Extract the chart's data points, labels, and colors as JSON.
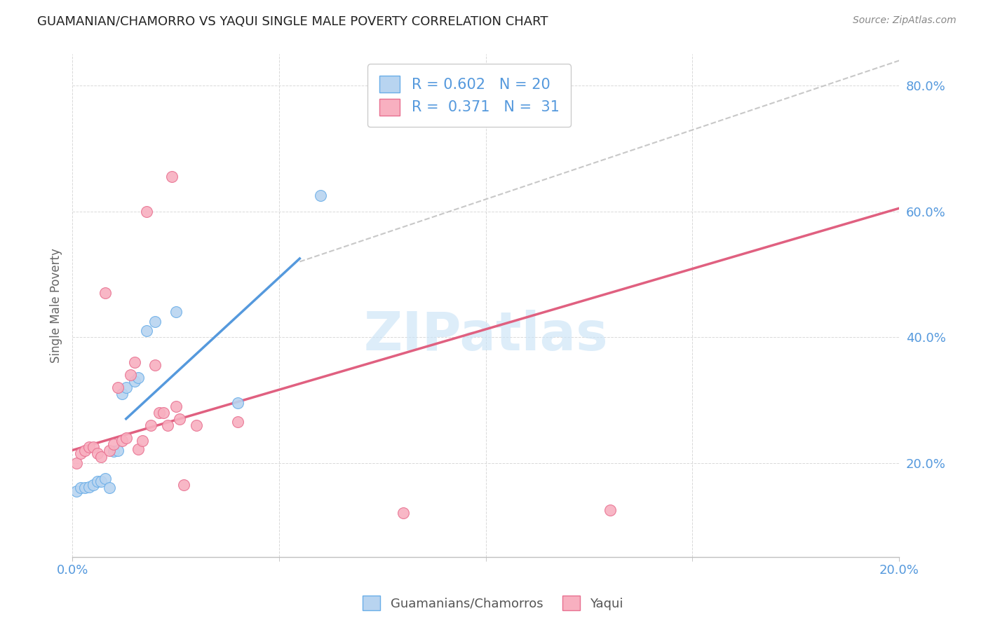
{
  "title": "GUAMANIAN/CHAMORRO VS YAQUI SINGLE MALE POVERTY CORRELATION CHART",
  "source": "Source: ZipAtlas.com",
  "ylabel_label": "Single Male Poverty",
  "xlim": [
    0.0,
    0.2
  ],
  "ylim": [
    0.05,
    0.85
  ],
  "xtick_labels": [
    "0.0%",
    "20.0%"
  ],
  "xtick_vals": [
    0.0,
    0.2
  ],
  "xtick_minor_vals": [
    0.05,
    0.1,
    0.15
  ],
  "ytick_labels": [
    "20.0%",
    "40.0%",
    "60.0%",
    "80.0%"
  ],
  "ytick_vals": [
    0.2,
    0.4,
    0.6,
    0.8
  ],
  "blue_fill_color": "#b8d4f0",
  "blue_edge_color": "#6aaee8",
  "pink_fill_color": "#f8b0c0",
  "pink_edge_color": "#e87090",
  "blue_line_color": "#5599dd",
  "pink_line_color": "#e06080",
  "dashed_line_color": "#c8c8c8",
  "legend_R_blue": "0.602",
  "legend_N_blue": "20",
  "legend_R_pink": "0.371",
  "legend_N_pink": "31",
  "watermark": "ZIPatlas",
  "blue_points_x": [
    0.001,
    0.002,
    0.003,
    0.004,
    0.005,
    0.006,
    0.007,
    0.008,
    0.009,
    0.01,
    0.011,
    0.012,
    0.013,
    0.015,
    0.016,
    0.018,
    0.02,
    0.025,
    0.04,
    0.06
  ],
  "blue_points_y": [
    0.155,
    0.16,
    0.16,
    0.162,
    0.165,
    0.17,
    0.17,
    0.175,
    0.16,
    0.218,
    0.22,
    0.31,
    0.32,
    0.33,
    0.335,
    0.41,
    0.425,
    0.44,
    0.295,
    0.625
  ],
  "pink_points_x": [
    0.001,
    0.002,
    0.003,
    0.004,
    0.005,
    0.006,
    0.007,
    0.008,
    0.009,
    0.01,
    0.011,
    0.012,
    0.013,
    0.014,
    0.015,
    0.016,
    0.017,
    0.018,
    0.019,
    0.02,
    0.021,
    0.022,
    0.023,
    0.024,
    0.025,
    0.026,
    0.027,
    0.03,
    0.04,
    0.08,
    0.13
  ],
  "pink_points_y": [
    0.2,
    0.215,
    0.22,
    0.225,
    0.225,
    0.215,
    0.21,
    0.47,
    0.22,
    0.23,
    0.32,
    0.235,
    0.24,
    0.34,
    0.36,
    0.222,
    0.235,
    0.6,
    0.26,
    0.355,
    0.28,
    0.28,
    0.26,
    0.655,
    0.29,
    0.27,
    0.165,
    0.26,
    0.265,
    0.12,
    0.125
  ],
  "blue_line_x": [
    0.013,
    0.055
  ],
  "blue_line_y": [
    0.27,
    0.525
  ],
  "pink_line_x": [
    0.0,
    0.2
  ],
  "pink_line_y": [
    0.22,
    0.605
  ],
  "dashed_line_x": [
    0.055,
    0.2
  ],
  "dashed_line_y": [
    0.52,
    0.84
  ]
}
